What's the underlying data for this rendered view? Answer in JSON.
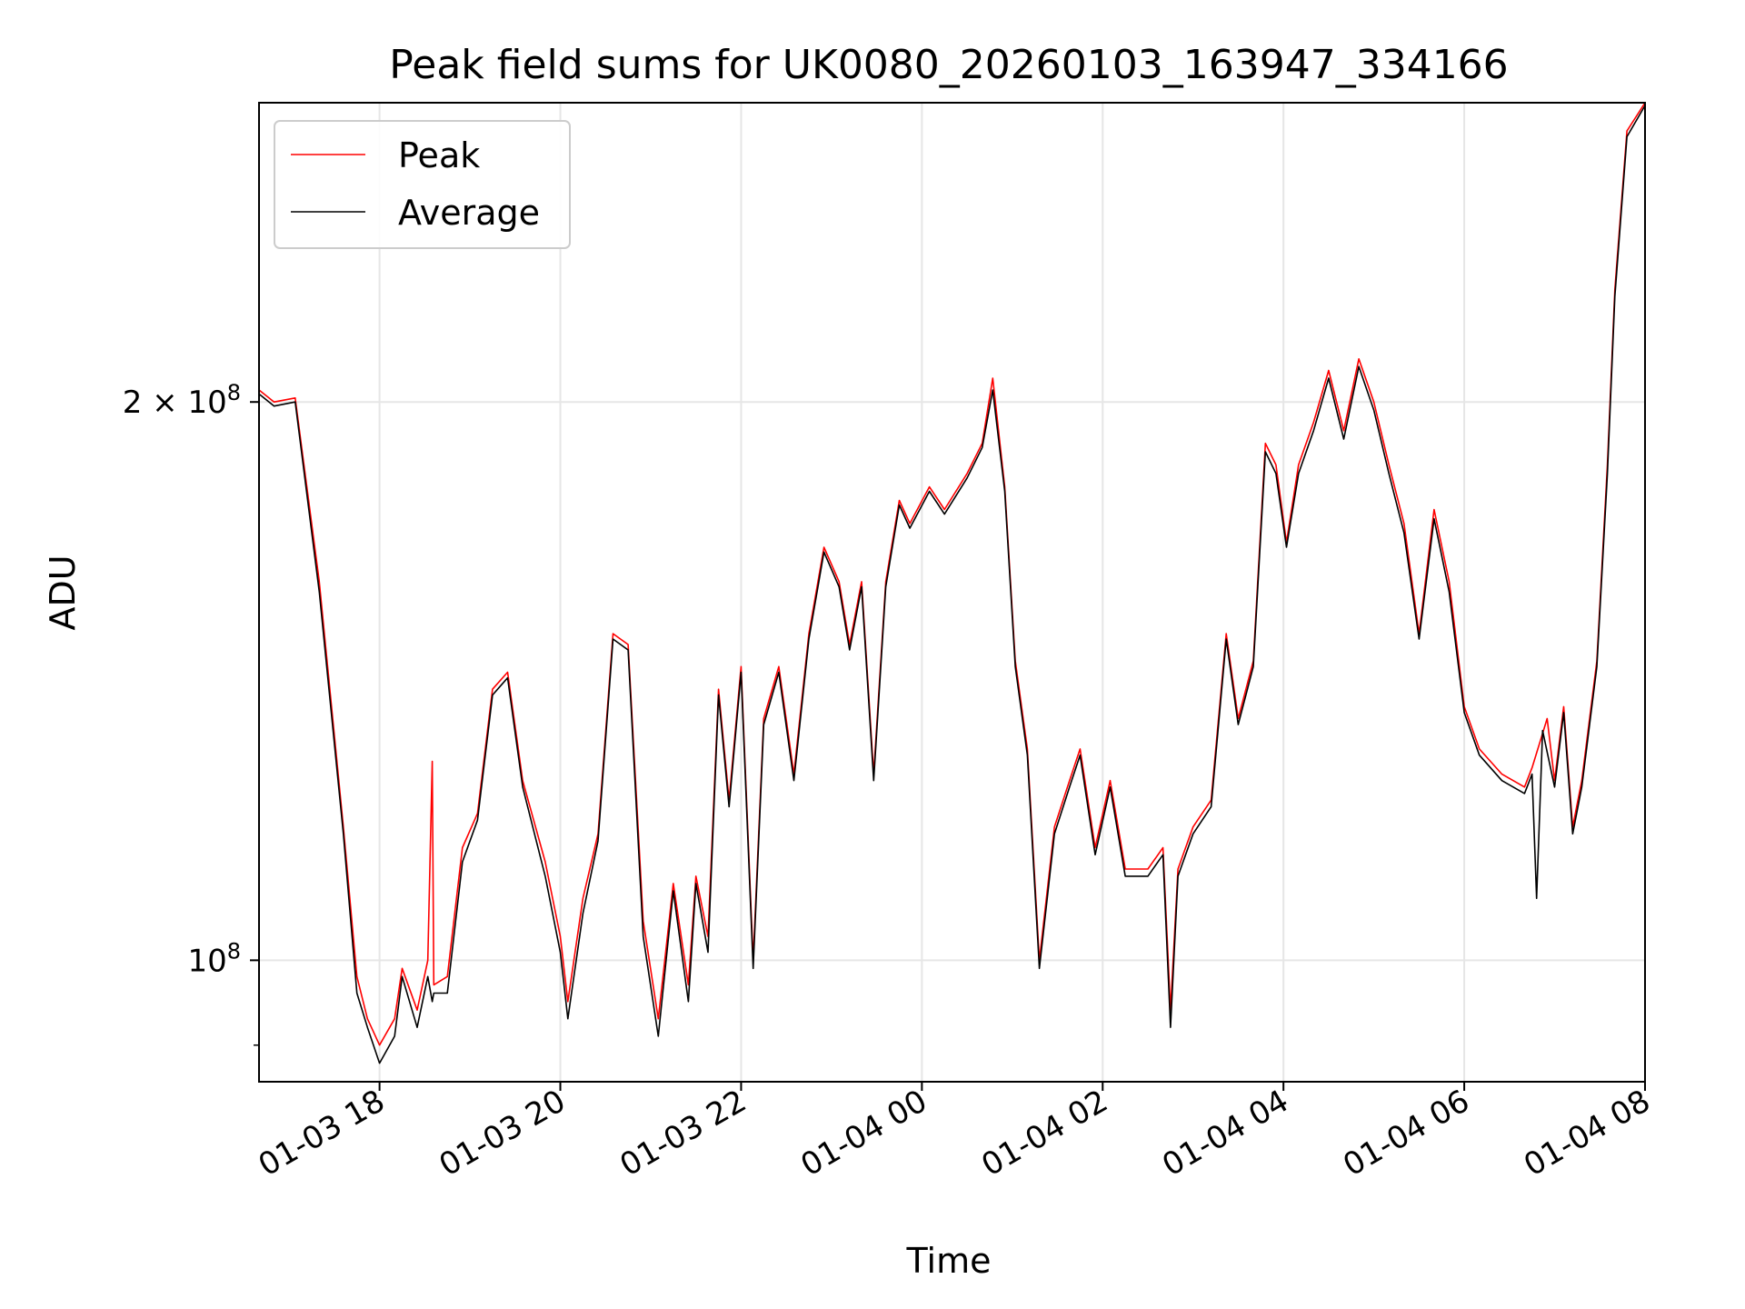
{
  "chart_data": {
    "type": "line",
    "title": "Peak field sums for UK0080_20260103_163947_334166",
    "xlabel": "Time",
    "ylabel": "ADU",
    "y_scale": "log",
    "grid": true,
    "legend_position": "top-left",
    "xlim": [
      "2026-01-03 16:40",
      "2026-01-04 08:00"
    ],
    "ylim": [
      86000000,
      290000000
    ],
    "x_ticks": [
      "01-03 18",
      "01-03 20",
      "01-03 22",
      "01-04 00",
      "01-04 02",
      "01-04 04",
      "01-04 06",
      "01-04 08"
    ],
    "x_tick_values": [
      "2026-01-03 18:00",
      "2026-01-03 20:00",
      "2026-01-03 22:00",
      "2026-01-04 00:00",
      "2026-01-04 02:00",
      "2026-01-04 04:00",
      "2026-01-04 06:00",
      "2026-01-04 08:00"
    ],
    "y_ticks": [
      {
        "value": 200000000,
        "mantissa": "2",
        "exponent": "8"
      },
      {
        "value": 100000000,
        "mantissa": "",
        "exponent": "8"
      }
    ],
    "series": [
      {
        "name": "Peak",
        "color": "#ff0000",
        "points": [
          [
            "2026-01-03 16:40",
            203000000
          ],
          [
            "2026-01-03 16:50",
            200000000
          ],
          [
            "2026-01-03 17:04",
            201000000
          ],
          [
            "2026-01-03 17:20",
            160000000
          ],
          [
            "2026-01-03 17:36",
            118000000
          ],
          [
            "2026-01-03 17:45",
            98000000
          ],
          [
            "2026-01-03 17:52",
            93000000
          ],
          [
            "2026-01-03 18:00",
            90000000
          ],
          [
            "2026-01-03 18:10",
            93000000
          ],
          [
            "2026-01-03 18:15",
            99000000
          ],
          [
            "2026-01-03 18:25",
            94000000
          ],
          [
            "2026-01-03 18:32",
            100000000
          ],
          [
            "2026-01-03 18:35",
            128000000
          ],
          [
            "2026-01-03 18:36",
            97000000
          ],
          [
            "2026-01-03 18:45",
            98000000
          ],
          [
            "2026-01-03 18:55",
            115000000
          ],
          [
            "2026-01-03 19:05",
            120000000
          ],
          [
            "2026-01-03 19:15",
            140000000
          ],
          [
            "2026-01-03 19:25",
            143000000
          ],
          [
            "2026-01-03 19:35",
            125000000
          ],
          [
            "2026-01-03 19:50",
            113000000
          ],
          [
            "2026-01-03 20:00",
            103000000
          ],
          [
            "2026-01-03 20:05",
            95000000
          ],
          [
            "2026-01-03 20:15",
            108000000
          ],
          [
            "2026-01-03 20:25",
            117000000
          ],
          [
            "2026-01-03 20:35",
            150000000
          ],
          [
            "2026-01-03 20:45",
            148000000
          ],
          [
            "2026-01-03 20:55",
            105000000
          ],
          [
            "2026-01-03 21:05",
            93000000
          ],
          [
            "2026-01-03 21:15",
            110000000
          ],
          [
            "2026-01-03 21:25",
            97000000
          ],
          [
            "2026-01-03 21:30",
            111000000
          ],
          [
            "2026-01-03 21:38",
            103000000
          ],
          [
            "2026-01-03 21:45",
            140000000
          ],
          [
            "2026-01-03 21:52",
            122000000
          ],
          [
            "2026-01-03 22:00",
            144000000
          ],
          [
            "2026-01-03 22:08",
            100000000
          ],
          [
            "2026-01-03 22:15",
            135000000
          ],
          [
            "2026-01-03 22:25",
            144000000
          ],
          [
            "2026-01-03 22:35",
            126000000
          ],
          [
            "2026-01-03 22:45",
            150000000
          ],
          [
            "2026-01-03 22:55",
            167000000
          ],
          [
            "2026-01-03 23:05",
            160000000
          ],
          [
            "2026-01-03 23:12",
            148000000
          ],
          [
            "2026-01-03 23:20",
            160000000
          ],
          [
            "2026-01-03 23:28",
            126000000
          ],
          [
            "2026-01-03 23:36",
            160000000
          ],
          [
            "2026-01-03 23:45",
            177000000
          ],
          [
            "2026-01-03 23:52",
            172000000
          ],
          [
            "2026-01-04 00:05",
            180000000
          ],
          [
            "2026-01-04 00:15",
            175000000
          ],
          [
            "2026-01-04 00:30",
            183000000
          ],
          [
            "2026-01-04 00:40",
            190000000
          ],
          [
            "2026-01-04 00:47",
            206000000
          ],
          [
            "2026-01-04 00:55",
            180000000
          ],
          [
            "2026-01-04 01:02",
            145000000
          ],
          [
            "2026-01-04 01:10",
            130000000
          ],
          [
            "2026-01-04 01:18",
            100000000
          ],
          [
            "2026-01-04 01:28",
            118000000
          ],
          [
            "2026-01-04 01:38",
            125000000
          ],
          [
            "2026-01-04 01:45",
            130000000
          ],
          [
            "2026-01-04 01:55",
            115000000
          ],
          [
            "2026-01-04 02:05",
            125000000
          ],
          [
            "2026-01-04 02:15",
            112000000
          ],
          [
            "2026-01-04 02:30",
            112000000
          ],
          [
            "2026-01-04 02:40",
            115000000
          ],
          [
            "2026-01-04 02:45",
            94000000
          ],
          [
            "2026-01-04 02:50",
            112000000
          ],
          [
            "2026-01-04 03:00",
            118000000
          ],
          [
            "2026-01-04 03:12",
            122000000
          ],
          [
            "2026-01-04 03:22",
            150000000
          ],
          [
            "2026-01-04 03:30",
            135000000
          ],
          [
            "2026-01-04 03:40",
            145000000
          ],
          [
            "2026-01-04 03:48",
            190000000
          ],
          [
            "2026-01-04 03:55",
            185000000
          ],
          [
            "2026-01-04 04:02",
            168000000
          ],
          [
            "2026-01-04 04:10",
            185000000
          ],
          [
            "2026-01-04 04:20",
            195000000
          ],
          [
            "2026-01-04 04:30",
            208000000
          ],
          [
            "2026-01-04 04:40",
            193000000
          ],
          [
            "2026-01-04 04:50",
            211000000
          ],
          [
            "2026-01-04 05:00",
            200000000
          ],
          [
            "2026-01-04 05:10",
            185000000
          ],
          [
            "2026-01-04 05:20",
            172000000
          ],
          [
            "2026-01-04 05:30",
            150000000
          ],
          [
            "2026-01-04 05:40",
            175000000
          ],
          [
            "2026-01-04 05:50",
            160000000
          ],
          [
            "2026-01-04 06:00",
            137000000
          ],
          [
            "2026-01-04 06:10",
            130000000
          ],
          [
            "2026-01-04 06:25",
            126000000
          ],
          [
            "2026-01-04 06:40",
            124000000
          ],
          [
            "2026-01-04 06:45",
            127000000
          ],
          [
            "2026-01-04 06:55",
            135000000
          ],
          [
            "2026-01-04 07:00",
            125000000
          ],
          [
            "2026-01-04 07:06",
            137000000
          ],
          [
            "2026-01-04 07:12",
            118000000
          ],
          [
            "2026-01-04 07:18",
            125000000
          ],
          [
            "2026-01-04 07:28",
            145000000
          ],
          [
            "2026-01-04 07:35",
            185000000
          ],
          [
            "2026-01-04 07:40",
            230000000
          ],
          [
            "2026-01-04 07:48",
            280000000
          ],
          [
            "2026-01-04 08:00",
            290000000
          ]
        ]
      },
      {
        "name": "Average",
        "color": "#000000",
        "points": [
          [
            "2026-01-03 16:40",
            202000000
          ],
          [
            "2026-01-03 16:50",
            199000000
          ],
          [
            "2026-01-03 17:04",
            200000000
          ],
          [
            "2026-01-03 17:20",
            158000000
          ],
          [
            "2026-01-03 17:36",
            117000000
          ],
          [
            "2026-01-03 17:45",
            96000000
          ],
          [
            "2026-01-03 17:52",
            92000000
          ],
          [
            "2026-01-03 18:00",
            88000000
          ],
          [
            "2026-01-03 18:10",
            91000000
          ],
          [
            "2026-01-03 18:15",
            98000000
          ],
          [
            "2026-01-03 18:25",
            92000000
          ],
          [
            "2026-01-03 18:32",
            98000000
          ],
          [
            "2026-01-03 18:35",
            95000000
          ],
          [
            "2026-01-03 18:36",
            96000000
          ],
          [
            "2026-01-03 18:45",
            96000000
          ],
          [
            "2026-01-03 18:55",
            113000000
          ],
          [
            "2026-01-03 19:05",
            119000000
          ],
          [
            "2026-01-03 19:15",
            139000000
          ],
          [
            "2026-01-03 19:25",
            142000000
          ],
          [
            "2026-01-03 19:35",
            124000000
          ],
          [
            "2026-01-03 19:50",
            111000000
          ],
          [
            "2026-01-03 20:00",
            101000000
          ],
          [
            "2026-01-03 20:05",
            93000000
          ],
          [
            "2026-01-03 20:15",
            106000000
          ],
          [
            "2026-01-03 20:25",
            116000000
          ],
          [
            "2026-01-03 20:35",
            149000000
          ],
          [
            "2026-01-03 20:45",
            147000000
          ],
          [
            "2026-01-03 20:55",
            103000000
          ],
          [
            "2026-01-03 21:05",
            91000000
          ],
          [
            "2026-01-03 21:15",
            109000000
          ],
          [
            "2026-01-03 21:25",
            95000000
          ],
          [
            "2026-01-03 21:30",
            110000000
          ],
          [
            "2026-01-03 21:38",
            101000000
          ],
          [
            "2026-01-03 21:45",
            139000000
          ],
          [
            "2026-01-03 21:52",
            121000000
          ],
          [
            "2026-01-03 22:00",
            143000000
          ],
          [
            "2026-01-03 22:08",
            99000000
          ],
          [
            "2026-01-03 22:15",
            134000000
          ],
          [
            "2026-01-03 22:25",
            143000000
          ],
          [
            "2026-01-03 22:35",
            125000000
          ],
          [
            "2026-01-03 22:45",
            149000000
          ],
          [
            "2026-01-03 22:55",
            166000000
          ],
          [
            "2026-01-03 23:05",
            159000000
          ],
          [
            "2026-01-03 23:12",
            147000000
          ],
          [
            "2026-01-03 23:20",
            159000000
          ],
          [
            "2026-01-03 23:28",
            125000000
          ],
          [
            "2026-01-03 23:36",
            159000000
          ],
          [
            "2026-01-03 23:45",
            176000000
          ],
          [
            "2026-01-03 23:52",
            171000000
          ],
          [
            "2026-01-04 00:05",
            179000000
          ],
          [
            "2026-01-04 00:15",
            174000000
          ],
          [
            "2026-01-04 00:30",
            182000000
          ],
          [
            "2026-01-04 00:40",
            189000000
          ],
          [
            "2026-01-04 00:47",
            203000000
          ],
          [
            "2026-01-04 00:55",
            179000000
          ],
          [
            "2026-01-04 01:02",
            144000000
          ],
          [
            "2026-01-04 01:10",
            129000000
          ],
          [
            "2026-01-04 01:18",
            99000000
          ],
          [
            "2026-01-04 01:28",
            117000000
          ],
          [
            "2026-01-04 01:38",
            124000000
          ],
          [
            "2026-01-04 01:45",
            129000000
          ],
          [
            "2026-01-04 01:55",
            114000000
          ],
          [
            "2026-01-04 02:05",
            124000000
          ],
          [
            "2026-01-04 02:15",
            111000000
          ],
          [
            "2026-01-04 02:30",
            111000000
          ],
          [
            "2026-01-04 02:40",
            114000000
          ],
          [
            "2026-01-04 02:45",
            92000000
          ],
          [
            "2026-01-04 02:50",
            111000000
          ],
          [
            "2026-01-04 03:00",
            117000000
          ],
          [
            "2026-01-04 03:12",
            121000000
          ],
          [
            "2026-01-04 03:22",
            149000000
          ],
          [
            "2026-01-04 03:30",
            134000000
          ],
          [
            "2026-01-04 03:40",
            144000000
          ],
          [
            "2026-01-04 03:48",
            188000000
          ],
          [
            "2026-01-04 03:55",
            183000000
          ],
          [
            "2026-01-04 04:02",
            167000000
          ],
          [
            "2026-01-04 04:10",
            183000000
          ],
          [
            "2026-01-04 04:20",
            193000000
          ],
          [
            "2026-01-04 04:30",
            206000000
          ],
          [
            "2026-01-04 04:40",
            191000000
          ],
          [
            "2026-01-04 04:50",
            209000000
          ],
          [
            "2026-01-04 05:00",
            198000000
          ],
          [
            "2026-01-04 05:10",
            183000000
          ],
          [
            "2026-01-04 05:20",
            170000000
          ],
          [
            "2026-01-04 05:30",
            149000000
          ],
          [
            "2026-01-04 05:40",
            173000000
          ],
          [
            "2026-01-04 05:50",
            158000000
          ],
          [
            "2026-01-04 06:00",
            136000000
          ],
          [
            "2026-01-04 06:10",
            129000000
          ],
          [
            "2026-01-04 06:25",
            125000000
          ],
          [
            "2026-01-04 06:40",
            123000000
          ],
          [
            "2026-01-04 06:45",
            126000000
          ],
          [
            "2026-01-04 06:48",
            108000000
          ],
          [
            "2026-01-04 06:52",
            133000000
          ],
          [
            "2026-01-04 07:00",
            124000000
          ],
          [
            "2026-01-04 07:06",
            136000000
          ],
          [
            "2026-01-04 07:12",
            117000000
          ],
          [
            "2026-01-04 07:18",
            124000000
          ],
          [
            "2026-01-04 07:28",
            144000000
          ],
          [
            "2026-01-04 07:35",
            183000000
          ],
          [
            "2026-01-04 07:40",
            228000000
          ],
          [
            "2026-01-04 07:48",
            278000000
          ],
          [
            "2026-01-04 08:00",
            289000000
          ]
        ]
      }
    ]
  }
}
